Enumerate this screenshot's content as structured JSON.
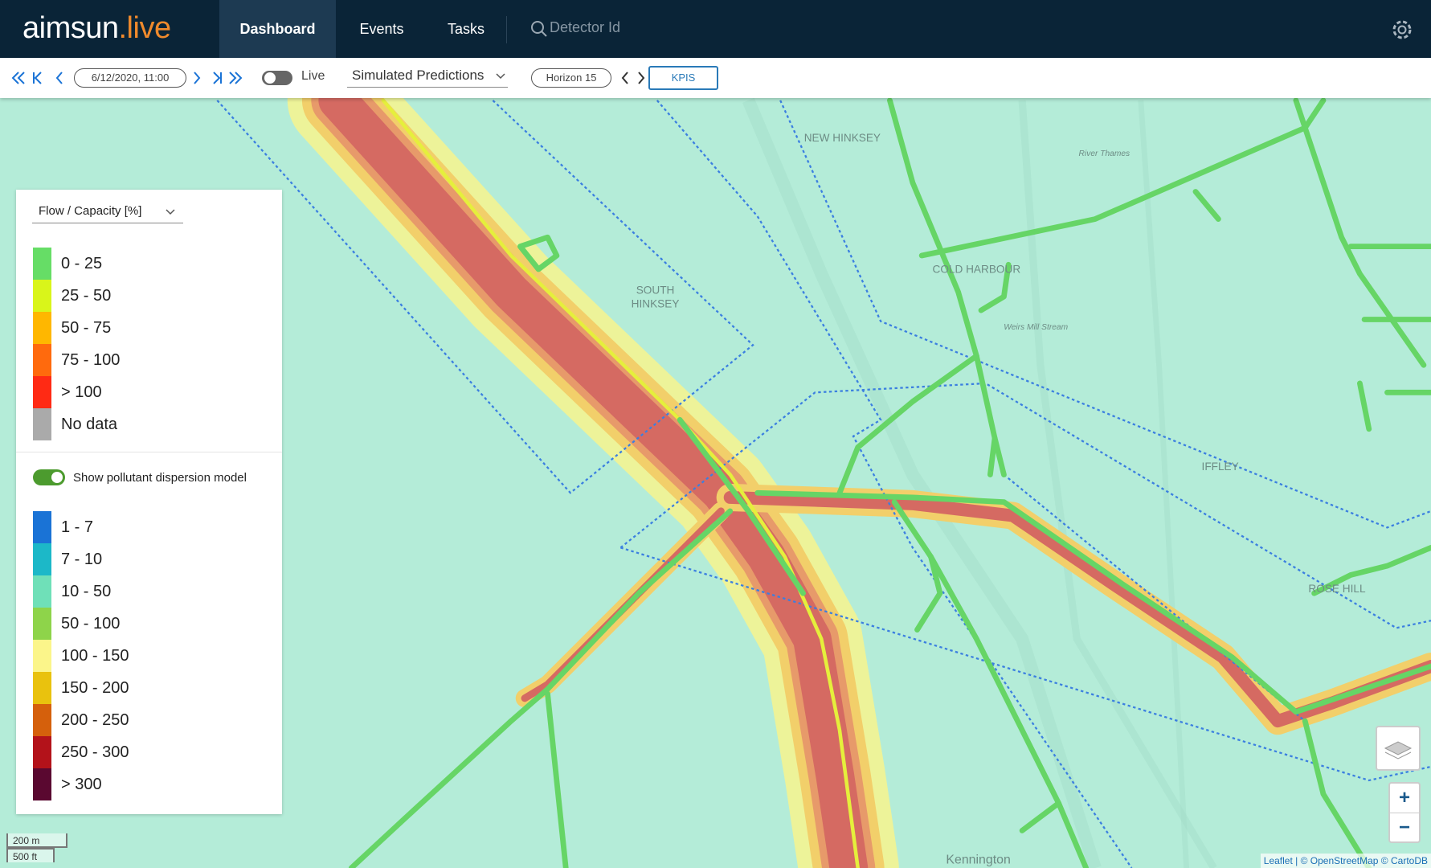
{
  "header": {
    "logo": {
      "name": "aimsun",
      "suffix": ".live"
    },
    "nav": [
      "Dashboard",
      "Events",
      "Tasks"
    ],
    "search_placeholder": "Detector Id"
  },
  "toolbar": {
    "datetime": "6/12/2020, 11:00",
    "live_label": "Live",
    "mode": "Simulated Predictions",
    "horizon": "Horizon 15",
    "kpis": "KPIS"
  },
  "legend": {
    "metric": "Flow / Capacity [%]",
    "flow_classes": [
      {
        "label": "0 - 25",
        "color": "#66dd66"
      },
      {
        "label": "25 - 50",
        "color": "#d9f51a"
      },
      {
        "label": "50 - 75",
        "color": "#ffb700"
      },
      {
        "label": "75 - 100",
        "color": "#ff6a0d"
      },
      {
        "label": "> 100",
        "color": "#ff2a14"
      },
      {
        "label": "No data",
        "color": "#aaaaaa"
      }
    ],
    "pollutant_toggle": "Show pollutant dispersion model",
    "pollutant_classes": [
      {
        "label": "1 - 7",
        "color": "#1a73d6"
      },
      {
        "label": "7 - 10",
        "color": "#1cb8c8"
      },
      {
        "label": "10 - 50",
        "color": "#6fe0b8"
      },
      {
        "label": "50 - 100",
        "color": "#8ed44a"
      },
      {
        "label": "100 - 150",
        "color": "#fbf58a"
      },
      {
        "label": "150 - 200",
        "color": "#e9c20e"
      },
      {
        "label": "200 - 250",
        "color": "#d5600c"
      },
      {
        "label": "250 - 300",
        "color": "#b3121a"
      },
      {
        "label": "> 300",
        "color": "#5a0830"
      }
    ]
  },
  "map": {
    "labels": [
      "NEW HINKSEY",
      "SOUTH",
      "HINKSEY",
      "COLD HARBOUR",
      "IFFLEY",
      "ROSE HILL",
      "Kennington",
      "River Thames",
      "Weirs Mill Stream"
    ],
    "scale": [
      "200 m",
      "500 ft"
    ],
    "attribution": "Leaflet | © OpenStreetMap © CartoDB",
    "zoom": [
      "+",
      "−"
    ]
  }
}
